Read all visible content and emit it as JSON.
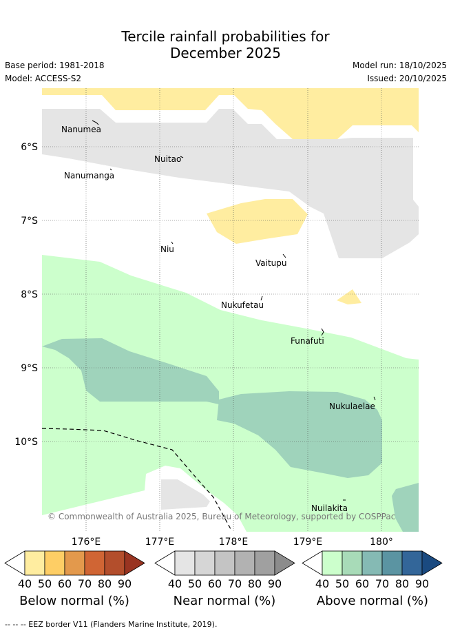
{
  "title": {
    "line1": "Tercile rainfall probabilities for",
    "line2": "December 2025"
  },
  "meta": {
    "base_period": "Base period: 1981-2018",
    "model": "Model: ACCESS-S2",
    "model_run": "Model run: 18/10/2025",
    "issued": "Issued: 20/10/2025"
  },
  "map": {
    "lat_labels": [
      "6°S",
      "7°S",
      "8°S",
      "9°S",
      "10°S"
    ],
    "lon_labels": [
      "176°E",
      "177°E",
      "178°E",
      "179°E",
      "180°"
    ],
    "places": [
      "Nanumea",
      "Nuitao",
      "Nanumanga",
      "Niu",
      "Vaitupu",
      "Nukufetau",
      "Funafuti",
      "Nukulaelae",
      "Nuilakita"
    ],
    "copyright": "© Commonwealth of Australia 2025, Bureau of Meteorology, supported by COSPPac",
    "colors": {
      "below_40": "#ffeda0",
      "near_40": "#e5e5e5",
      "above_40": "#ccffcc",
      "above_50": "#9fd3bb",
      "grid": "#555555"
    }
  },
  "colorbars": {
    "ticks": [
      "40",
      "50",
      "60",
      "70",
      "80",
      "90"
    ],
    "below": {
      "label": "Below normal (%)",
      "colors": [
        "#ffeda0",
        "#fece65",
        "#e3994c",
        "#d06534",
        "#b34e2c",
        "#993421"
      ]
    },
    "near": {
      "label": "Near normal (%)",
      "colors": [
        "#e5e5e5",
        "#d6d6d6",
        "#c4c4c4",
        "#b2b2b2",
        "#a0a0a0",
        "#8c8c8c"
      ]
    },
    "above": {
      "label": "Above normal (%)",
      "colors": [
        "#ccffcc",
        "#a8dbb8",
        "#85bab4",
        "#5b94a2",
        "#336699",
        "#1a4a80"
      ]
    }
  },
  "footer": {
    "legend": "--  --  -- EEZ border V11 (Flanders Marine Institute, 2019)."
  }
}
